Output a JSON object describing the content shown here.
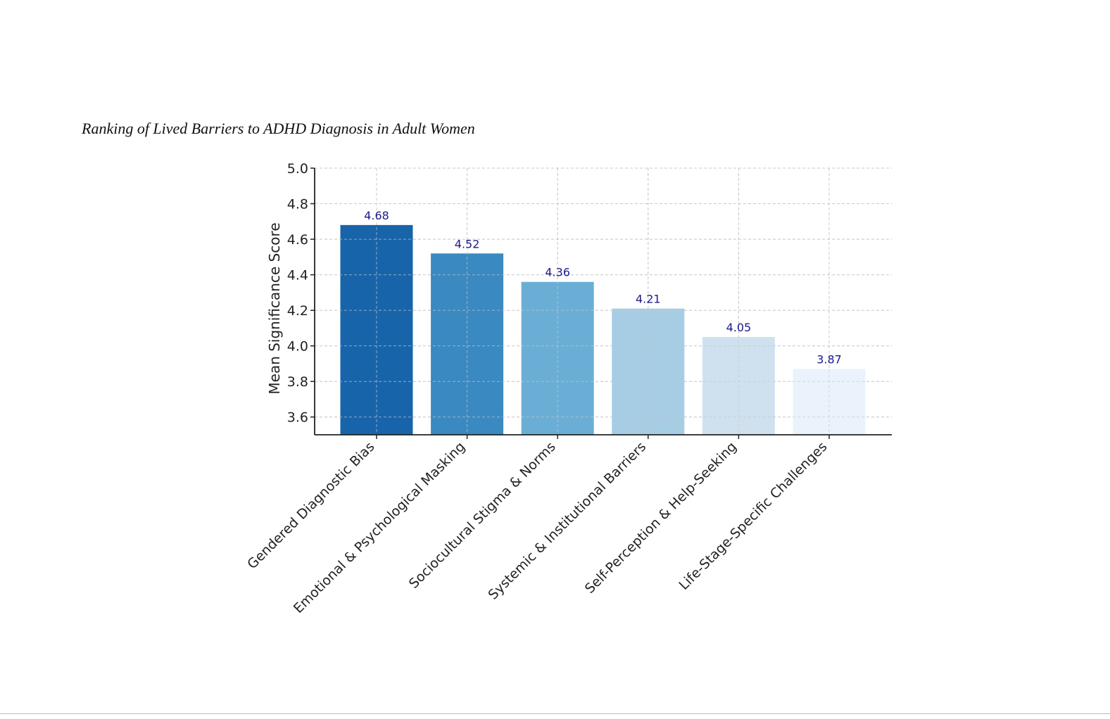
{
  "page": {
    "caption": "Ranking of Lived Barriers to ADHD Diagnosis in Adult Women"
  },
  "chart_data": {
    "type": "bar",
    "title": "Ranking of Lived Barriers to ADHD Diagnosis in Adult Women",
    "xlabel": "",
    "ylabel": "Mean Significance Score",
    "categories": [
      "Gendered Diagnostic Bias",
      "Emotional & Psychological Masking",
      "Sociocultural Stigma & Norms",
      "Systemic & Institutional Barriers",
      "Self-Perception & Help-Seeking",
      "Life-Stage-Specific Challenges"
    ],
    "values": [
      4.68,
      4.52,
      4.36,
      4.21,
      4.05,
      3.87
    ],
    "value_labels": [
      "4.68",
      "4.52",
      "4.36",
      "4.21",
      "4.05",
      "3.87"
    ],
    "ylim": [
      3.5,
      5.0
    ],
    "yticks": [
      3.6,
      3.8,
      4.0,
      4.2,
      4.4,
      4.6,
      4.8,
      5.0
    ],
    "ytick_labels": [
      "3.6",
      "3.8",
      "4.0",
      "4.2",
      "4.4",
      "4.6",
      "4.8",
      "5.0"
    ],
    "grid": true,
    "colors": {
      "bars": [
        "#1864aa",
        "#3a89c1",
        "#6aaed5",
        "#a6cde3",
        "#cfe1ef",
        "#eaf3fb"
      ],
      "value_label": "#1a1a8c",
      "grid": "#cfcfcf",
      "axis": "#222222"
    }
  }
}
